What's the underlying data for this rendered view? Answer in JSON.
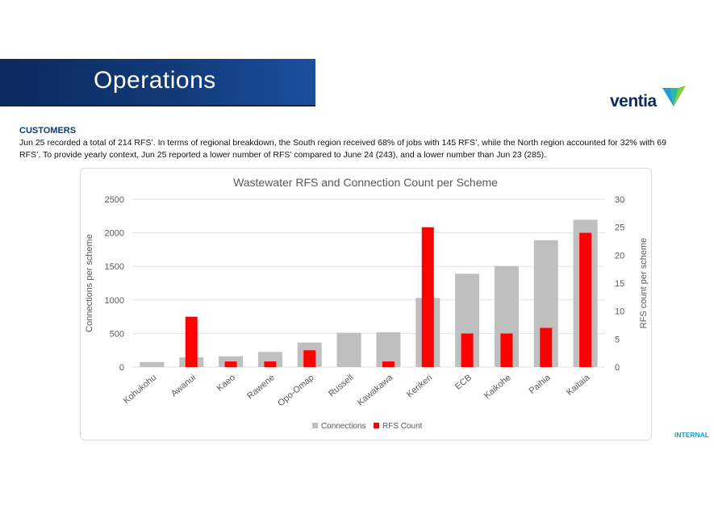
{
  "header": {
    "title": "Operations"
  },
  "logo": {
    "wordmark": "ventia"
  },
  "section": {
    "label": "CUSTOMERS",
    "paragraph": "Jun 25 recorded a total of 214 RFS’. In terms of regional breakdown, the South region received 68% of jobs with 145 RFS’, while the North region accounted for 32% with 69 RFS’. To provide yearly context, Jun 25 reported a lower number of RFS’ compared to June 24 (243), and a lower number than Jun 23 (285)."
  },
  "footer": {
    "classification": "INTERNAL"
  },
  "chart_data": {
    "type": "bar",
    "title": "Wastewater RFS and Connection Count per Scheme",
    "categories": [
      "Kohukohu",
      "Awanui",
      "Kaeo",
      "Rawene",
      "Opo-Omap",
      "Russell",
      "Kawakawa",
      "Kerikeri",
      "ECB",
      "Kaikohe",
      "Paihia",
      "Kaitaia"
    ],
    "series": [
      {
        "name": "Connections",
        "axis": "left",
        "color": "#bfbfbf",
        "values": [
          75,
          145,
          160,
          225,
          365,
          510,
          520,
          1030,
          1390,
          1505,
          1890,
          2195
        ]
      },
      {
        "name": "RFS Count",
        "axis": "right",
        "color": "#ff0000",
        "values": [
          0,
          9,
          1,
          1,
          3,
          0,
          1,
          25,
          6,
          6,
          7,
          24
        ]
      }
    ],
    "ylabel": "Connections per scheme",
    "y2label": "RFS count per scheme",
    "ylim": [
      0,
      2500
    ],
    "y2lim": [
      0,
      30
    ],
    "yticks": [
      "0",
      "500",
      "1000",
      "1500",
      "2000",
      "2500"
    ],
    "y2ticks": [
      "0",
      "5",
      "10",
      "15",
      "20",
      "25",
      "30"
    ],
    "grid": true,
    "legend": "bottom"
  }
}
